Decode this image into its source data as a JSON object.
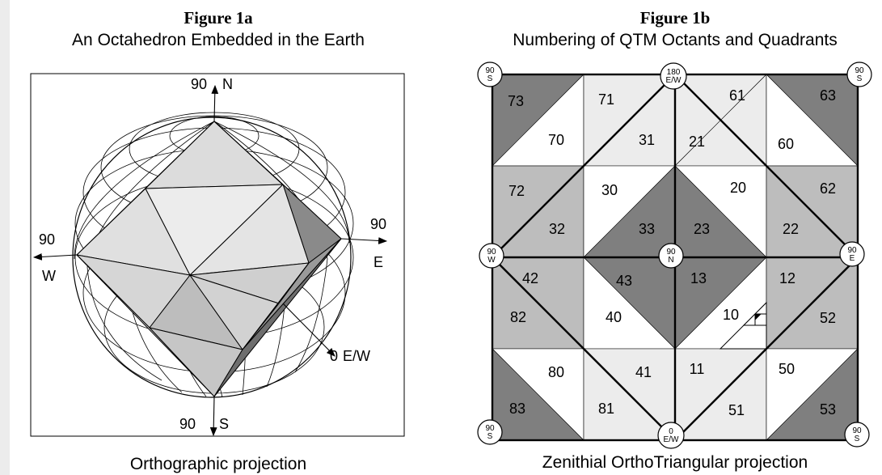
{
  "figure_a": {
    "title": "Figure 1a",
    "subtitle": "An Octahedron Embedded in the Earth",
    "caption": "Orthographic projection",
    "labels": {
      "north_value": "90",
      "north": "N",
      "south_value": "90",
      "south": "S",
      "west_value": "90",
      "west": "W",
      "east_value": "90",
      "east": "E",
      "prime_value": "0",
      "prime": "E/W"
    }
  },
  "figure_b": {
    "title": "Figure 1b",
    "subtitle": "Numbering of QTM Octants and Quadrants",
    "caption": "Zenithial OrthoTriangular projection",
    "circle_labels": {
      "top_left": {
        "value": "90",
        "dir": "S"
      },
      "top_mid": {
        "value": "180",
        "dir": "E/W"
      },
      "top_right": {
        "value": "90",
        "dir": "S"
      },
      "mid_left": {
        "value": "90",
        "dir": "W"
      },
      "center": {
        "value": "90",
        "dir": "N"
      },
      "mid_right": {
        "value": "90",
        "dir": "E"
      },
      "bottom_left": {
        "value": "90",
        "dir": "S"
      },
      "bottom_mid": {
        "value": "0",
        "dir": "E/W"
      },
      "bottom_right": {
        "value": "90",
        "dir": "S"
      }
    },
    "facet_numbers": [
      "73",
      "71",
      "61",
      "63",
      "70",
      "31",
      "21",
      "60",
      "72",
      "30",
      "20",
      "62",
      "32",
      "33",
      "23",
      "22",
      "42",
      "43",
      "13",
      "12",
      "82",
      "40",
      "10",
      "52",
      "80",
      "41",
      "11",
      "50",
      "83",
      "81",
      "51",
      "53"
    ],
    "colors": {
      "dark": "#7f7f7f",
      "medium": "#bdbdbd",
      "light": "#ececec",
      "white": "#ffffff"
    }
  }
}
